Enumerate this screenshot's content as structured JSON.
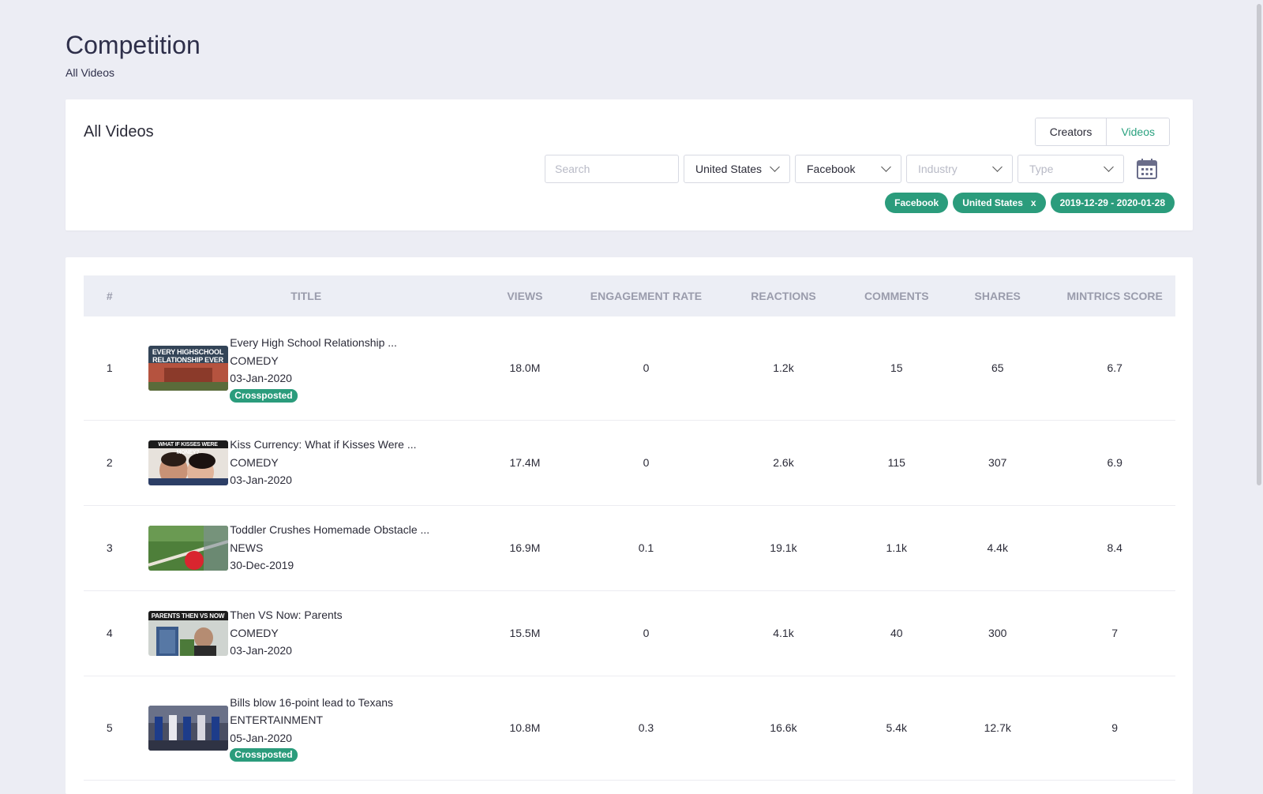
{
  "page": {
    "title": "Competition",
    "subtitle": "All Videos"
  },
  "filter_card": {
    "title": "All Videos",
    "toggle": {
      "creators": "Creators",
      "videos": "Videos"
    },
    "search_placeholder": "Search",
    "country": "United States",
    "platform": "Facebook",
    "industry_placeholder": "Industry",
    "type_placeholder": "Type",
    "chips": [
      {
        "label": "Facebook",
        "removable": ""
      },
      {
        "label": "United States",
        "removable": "x"
      },
      {
        "label": "2019-12-29 - 2020-01-28",
        "removable": ""
      }
    ]
  },
  "table": {
    "headers": {
      "num": "#",
      "title": "TITLE",
      "views": "VIEWS",
      "engagement": "ENGAGEMENT RATE",
      "reactions": "REACTIONS",
      "comments": "COMMENTS",
      "shares": "SHARES",
      "score": "MINTRICS SCORE"
    },
    "rows": [
      {
        "num": "1",
        "title": "Every High School Relationship ...",
        "category": "COMEDY",
        "date": "03-Jan-2020",
        "badge": "Crossposted",
        "thumb_text": "EVERY HIGHSCHOOL RELATIONSHIP EVER",
        "views": "18.0M",
        "engagement": "0",
        "reactions": "1.2k",
        "comments": "15",
        "shares": "65",
        "score": "6.7"
      },
      {
        "num": "2",
        "title": "Kiss Currency: What if Kisses Were ...",
        "category": "COMEDY",
        "date": "03-Jan-2020",
        "badge": "",
        "thumb_text": "WHAT IF KISSES WERE MONEY?",
        "views": "17.4M",
        "engagement": "0",
        "reactions": "2.6k",
        "comments": "115",
        "shares": "307",
        "score": "6.9"
      },
      {
        "num": "3",
        "title": "Toddler Crushes Homemade Obstacle ...",
        "category": "NEWS",
        "date": "30-Dec-2019",
        "badge": "",
        "thumb_text": "",
        "views": "16.9M",
        "engagement": "0.1",
        "reactions": "19.1k",
        "comments": "1.1k",
        "shares": "4.4k",
        "score": "8.4"
      },
      {
        "num": "4",
        "title": "Then VS Now: Parents",
        "category": "COMEDY",
        "date": "03-Jan-2020",
        "badge": "",
        "thumb_text": "PARENTS THEN VS NOW",
        "views": "15.5M",
        "engagement": "0",
        "reactions": "4.1k",
        "comments": "40",
        "shares": "300",
        "score": "7"
      },
      {
        "num": "5",
        "title": "Bills blow 16-point lead to Texans",
        "category": "ENTERTAINMENT",
        "date": "05-Jan-2020",
        "badge": "Crossposted",
        "thumb_text": "",
        "views": "10.8M",
        "engagement": "0.3",
        "reactions": "16.6k",
        "comments": "5.4k",
        "shares": "12.7k",
        "score": "9"
      }
    ]
  },
  "colors": {
    "accent": "#2b9c7c",
    "background": "#ecedf4",
    "header_bg": "#eceef5"
  },
  "icons": {
    "calendar": "calendar-icon",
    "chevron": "chevron-down-icon"
  }
}
